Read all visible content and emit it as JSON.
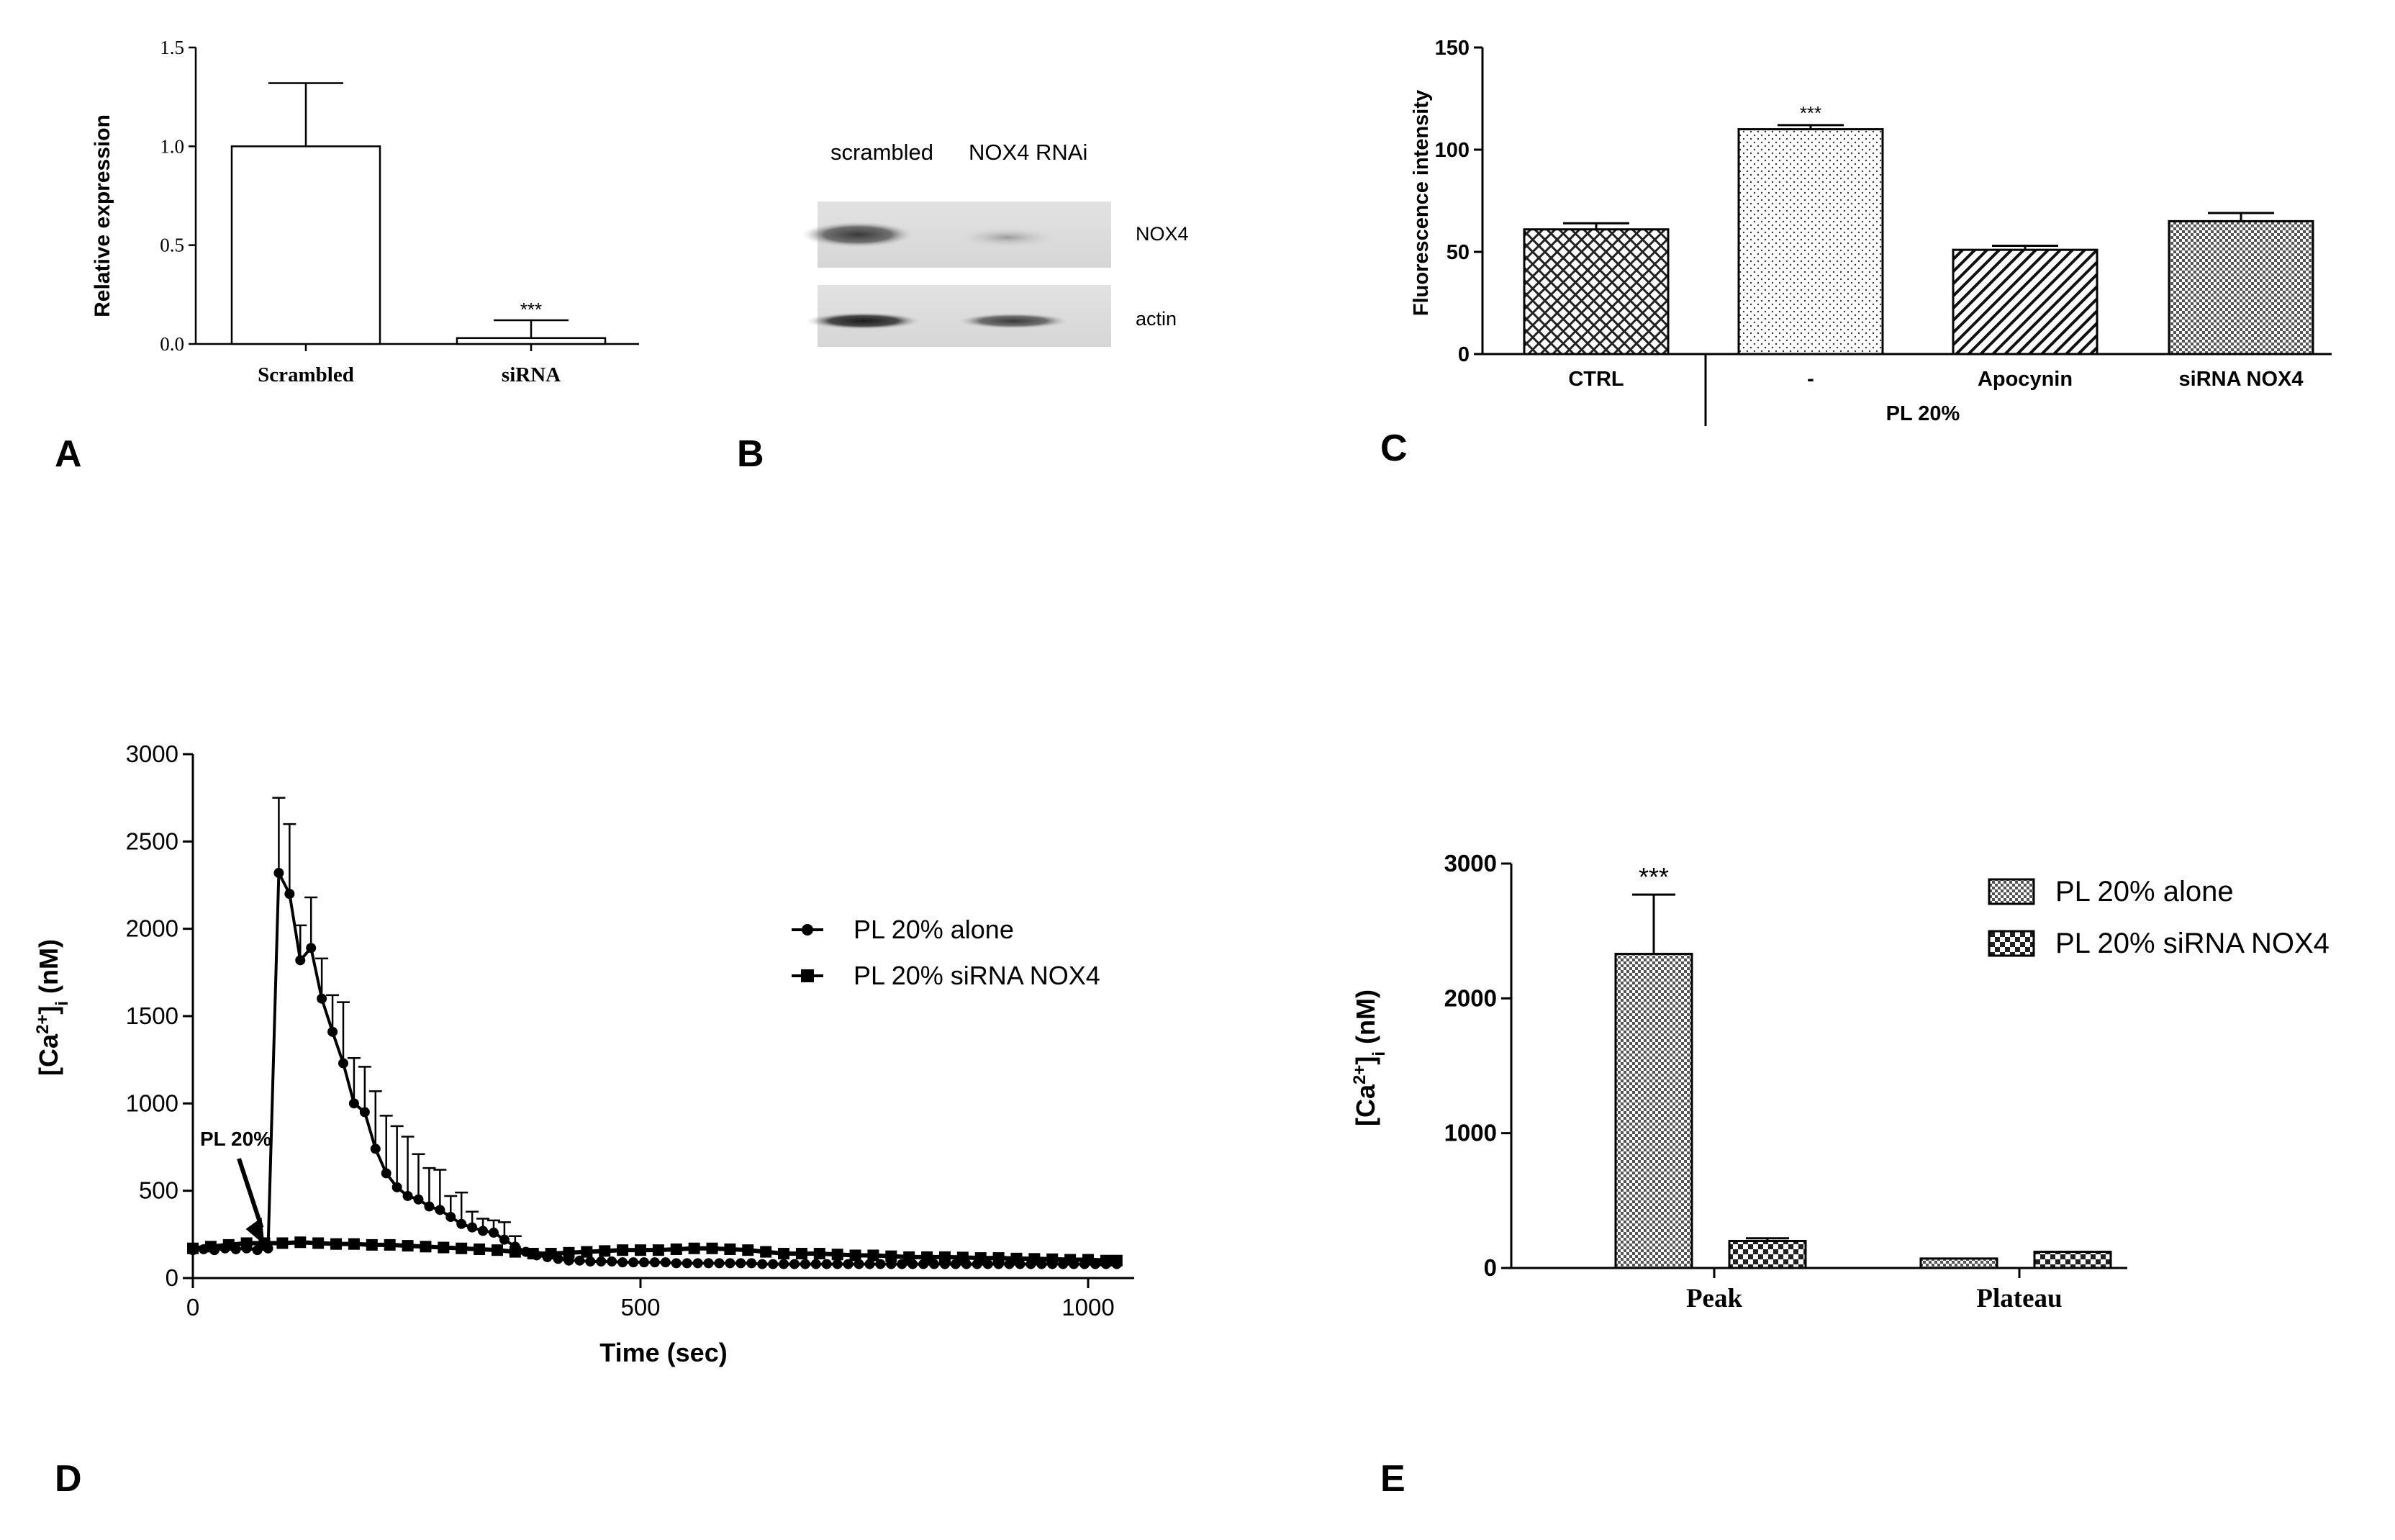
{
  "figure": {
    "panel_letters": [
      "A",
      "B",
      "C",
      "D",
      "E"
    ]
  },
  "blot": {
    "lane_labels": [
      "scrambled",
      "NOX4 RNAi"
    ],
    "band_labels": [
      "NOX4",
      "actin"
    ]
  },
  "chart_data": [
    {
      "panel": "A",
      "type": "bar",
      "categories": [
        "Scrambled",
        "siRNA"
      ],
      "values": [
        1.0,
        0.03
      ],
      "errors": [
        0.32,
        0.09
      ],
      "annotations": [
        "",
        "***"
      ],
      "title": "",
      "xlabel": "",
      "ylabel": "Relative expression",
      "ylim": [
        0,
        1.5
      ],
      "yticks": [
        "0.0",
        "0.5",
        "1.0",
        "1.5"
      ],
      "grid": false
    },
    {
      "panel": "C",
      "type": "bar",
      "categories": [
        "CTRL",
        "-",
        "Apocynin",
        "siRNA NOX4"
      ],
      "group_label": "PL 20%",
      "values": [
        61,
        110,
        51,
        65
      ],
      "errors": [
        3,
        2,
        2,
        4
      ],
      "annotations": [
        "",
        "***",
        "",
        ""
      ],
      "title": "",
      "xlabel": "",
      "ylabel": "Fluorescence intensity",
      "ylim": [
        0,
        150
      ],
      "yticks": [
        "0",
        "50",
        "100",
        "150"
      ],
      "grid": false
    },
    {
      "panel": "D",
      "type": "line",
      "title": "",
      "xlabel": "Time (sec)",
      "ylabel": "[Ca2+]i (nM)",
      "ylabel_parts": {
        "pre": "[Ca",
        "sup": "2+",
        "mid": "]",
        "sub": "i",
        "post": " (nM)"
      },
      "xlim": [
        0,
        1040
      ],
      "ylim": [
        0,
        3000
      ],
      "xticks": [
        "0",
        "500",
        "1000"
      ],
      "yticks": [
        "0",
        "500",
        "1000",
        "1500",
        "2000",
        "2500",
        "3000"
      ],
      "legend_position": "right",
      "annotation": {
        "text": "PL 20%",
        "x": 80,
        "y": 190
      },
      "series": [
        {
          "name": "PL 20% alone",
          "marker": "circle",
          "x": [
            0,
            12,
            24,
            36,
            48,
            60,
            72,
            84,
            96,
            108,
            120,
            132,
            144,
            156,
            168,
            180,
            192,
            204,
            216,
            228,
            240,
            252,
            264,
            276,
            288,
            300,
            312,
            324,
            336,
            348,
            360,
            372,
            384,
            396,
            408,
            420,
            432,
            444,
            456,
            468,
            480,
            492,
            504,
            516,
            528,
            540,
            552,
            564,
            576,
            588,
            600,
            612,
            624,
            636,
            648,
            660,
            672,
            684,
            696,
            708,
            720,
            732,
            744,
            756,
            768,
            780,
            792,
            804,
            816,
            828,
            840,
            852,
            864,
            876,
            888,
            900,
            912,
            924,
            936,
            948,
            960,
            972,
            984,
            996,
            1008,
            1020,
            1032
          ],
          "y": [
            160,
            165,
            160,
            170,
            165,
            170,
            160,
            170,
            2320,
            2200,
            1820,
            1890,
            1600,
            1410,
            1230,
            1000,
            950,
            740,
            600,
            520,
            470,
            450,
            410,
            390,
            350,
            310,
            290,
            270,
            260,
            220,
            180,
            150,
            130,
            120,
            110,
            100,
            100,
            95,
            95,
            95,
            90,
            90,
            90,
            90,
            90,
            85,
            85,
            85,
            85,
            85,
            85,
            85,
            85,
            80,
            80,
            80,
            80,
            80,
            80,
            80,
            80,
            80,
            80,
            80,
            80,
            80,
            80,
            80,
            80,
            80,
            80,
            80,
            80,
            80,
            80,
            80,
            80,
            80,
            80,
            80,
            80,
            80,
            80,
            80,
            80,
            80,
            80
          ],
          "error_bars": [
            {
              "x": 96,
              "y": 2320,
              "err": 430
            },
            {
              "x": 108,
              "y": 2200,
              "err": 400
            },
            {
              "x": 120,
              "y": 1820,
              "err": 200
            },
            {
              "x": 132,
              "y": 1890,
              "err": 290
            },
            {
              "x": 144,
              "y": 1600,
              "err": 230
            },
            {
              "x": 156,
              "y": 1410,
              "err": 210
            },
            {
              "x": 168,
              "y": 1230,
              "err": 350
            },
            {
              "x": 180,
              "y": 1000,
              "err": 260
            },
            {
              "x": 192,
              "y": 950,
              "err": 260
            },
            {
              "x": 204,
              "y": 740,
              "err": 330
            },
            {
              "x": 216,
              "y": 600,
              "err": 330
            },
            {
              "x": 228,
              "y": 520,
              "err": 350
            },
            {
              "x": 240,
              "y": 470,
              "err": 340
            },
            {
              "x": 252,
              "y": 450,
              "err": 260
            },
            {
              "x": 264,
              "y": 410,
              "err": 220
            },
            {
              "x": 276,
              "y": 390,
              "err": 230
            },
            {
              "x": 288,
              "y": 350,
              "err": 120
            },
            {
              "x": 300,
              "y": 310,
              "err": 180
            },
            {
              "x": 312,
              "y": 290,
              "err": 90
            },
            {
              "x": 324,
              "y": 270,
              "err": 70
            },
            {
              "x": 336,
              "y": 260,
              "err": 70
            },
            {
              "x": 348,
              "y": 220,
              "err": 100
            },
            {
              "x": 360,
              "y": 180,
              "err": 60
            }
          ]
        },
        {
          "name": "PL 20% siRNA NOX4",
          "marker": "square",
          "x": [
            0,
            20,
            40,
            60,
            80,
            100,
            120,
            140,
            160,
            180,
            200,
            220,
            240,
            260,
            280,
            300,
            320,
            340,
            360,
            380,
            400,
            420,
            440,
            460,
            480,
            500,
            520,
            540,
            560,
            580,
            600,
            620,
            640,
            660,
            680,
            700,
            720,
            740,
            760,
            780,
            800,
            820,
            840,
            860,
            880,
            900,
            920,
            940,
            960,
            980,
            1000,
            1020,
            1032
          ],
          "y": [
            170,
            180,
            190,
            200,
            200,
            200,
            205,
            200,
            195,
            195,
            190,
            190,
            185,
            180,
            175,
            170,
            165,
            160,
            150,
            140,
            140,
            145,
            150,
            155,
            160,
            160,
            160,
            165,
            170,
            170,
            165,
            160,
            150,
            140,
            140,
            140,
            135,
            130,
            130,
            125,
            120,
            120,
            120,
            118,
            115,
            115,
            112,
            110,
            108,
            105,
            105,
            100,
            100
          ]
        }
      ]
    },
    {
      "panel": "E",
      "type": "bar",
      "categories": [
        "Peak",
        "Plateau"
      ],
      "series": [
        {
          "name": "PL 20% alone",
          "values": [
            2330,
            70
          ],
          "errors": [
            440,
            0
          ]
        },
        {
          "name": "PL 20% siRNA NOX4",
          "values": [
            200,
            120
          ],
          "errors": [
            20,
            0
          ]
        }
      ],
      "annotations": [
        "***",
        ""
      ],
      "title": "",
      "xlabel": "",
      "ylabel": "[Ca2+]i (nM)",
      "ylabel_parts": {
        "pre": "[Ca",
        "sup": "2+",
        "mid": "]",
        "sub": "i",
        "post": " (nM)"
      },
      "ylim": [
        0,
        3000
      ],
      "yticks": [
        "0",
        "1000",
        "2000",
        "3000"
      ],
      "legend_position": "top-right",
      "grid": false
    }
  ]
}
